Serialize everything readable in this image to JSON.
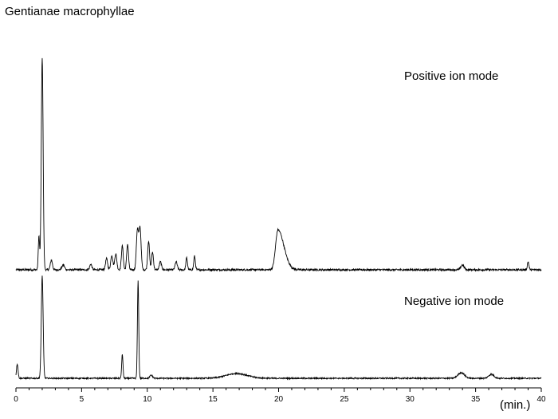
{
  "chart_data": {
    "type": "line",
    "title": "Gentianae macrophyllae",
    "xlabel": "(min.)",
    "xlim": [
      0,
      40
    ],
    "x_ticks": [
      "0",
      "5",
      "10",
      "15",
      "20",
      "25",
      "30",
      "35",
      "40"
    ],
    "series": [
      {
        "name": "Positive ion mode",
        "baseline": 2,
        "noise": 1.2,
        "peaks": [
          {
            "rt": 1.75,
            "height": 42,
            "width": 0.05
          },
          {
            "rt": 2.0,
            "height": 265,
            "width": 0.07
          },
          {
            "rt": 2.7,
            "height": 12,
            "width": 0.08
          },
          {
            "rt": 3.6,
            "height": 6,
            "width": 0.1
          },
          {
            "rt": 5.7,
            "height": 7,
            "width": 0.08
          },
          {
            "rt": 6.9,
            "height": 14,
            "width": 0.08
          },
          {
            "rt": 7.3,
            "height": 18,
            "width": 0.08
          },
          {
            "rt": 7.6,
            "height": 20,
            "width": 0.08
          },
          {
            "rt": 8.1,
            "height": 30,
            "width": 0.07
          },
          {
            "rt": 8.5,
            "height": 32,
            "width": 0.07
          },
          {
            "rt": 9.25,
            "height": 50,
            "width": 0.08
          },
          {
            "rt": 9.45,
            "height": 52,
            "width": 0.08
          },
          {
            "rt": 10.1,
            "height": 36,
            "width": 0.07
          },
          {
            "rt": 10.4,
            "height": 22,
            "width": 0.07
          },
          {
            "rt": 11.0,
            "height": 10,
            "width": 0.08
          },
          {
            "rt": 12.2,
            "height": 10,
            "width": 0.08
          },
          {
            "rt": 13.0,
            "height": 15,
            "width": 0.06
          },
          {
            "rt": 13.6,
            "height": 17,
            "width": 0.06
          },
          {
            "rt": 19.95,
            "height": 50,
            "width": 0.18,
            "tail": 0.45
          },
          {
            "rt": 34.0,
            "height": 6,
            "width": 0.12
          },
          {
            "rt": 39.0,
            "height": 10,
            "width": 0.06
          }
        ]
      },
      {
        "name": "Negative ion mode",
        "baseline": 2,
        "noise": 0.8,
        "peaks": [
          {
            "rt": 0.1,
            "height": 18,
            "width": 0.06
          },
          {
            "rt": 2.0,
            "height": 128,
            "width": 0.07
          },
          {
            "rt": 8.1,
            "height": 30,
            "width": 0.05
          },
          {
            "rt": 9.3,
            "height": 122,
            "width": 0.05
          },
          {
            "rt": 10.3,
            "height": 4,
            "width": 0.1
          },
          {
            "rt": 16.8,
            "height": 6,
            "width": 0.8
          },
          {
            "rt": 33.9,
            "height": 7,
            "width": 0.25
          },
          {
            "rt": 36.2,
            "height": 5,
            "width": 0.2
          }
        ]
      }
    ]
  }
}
